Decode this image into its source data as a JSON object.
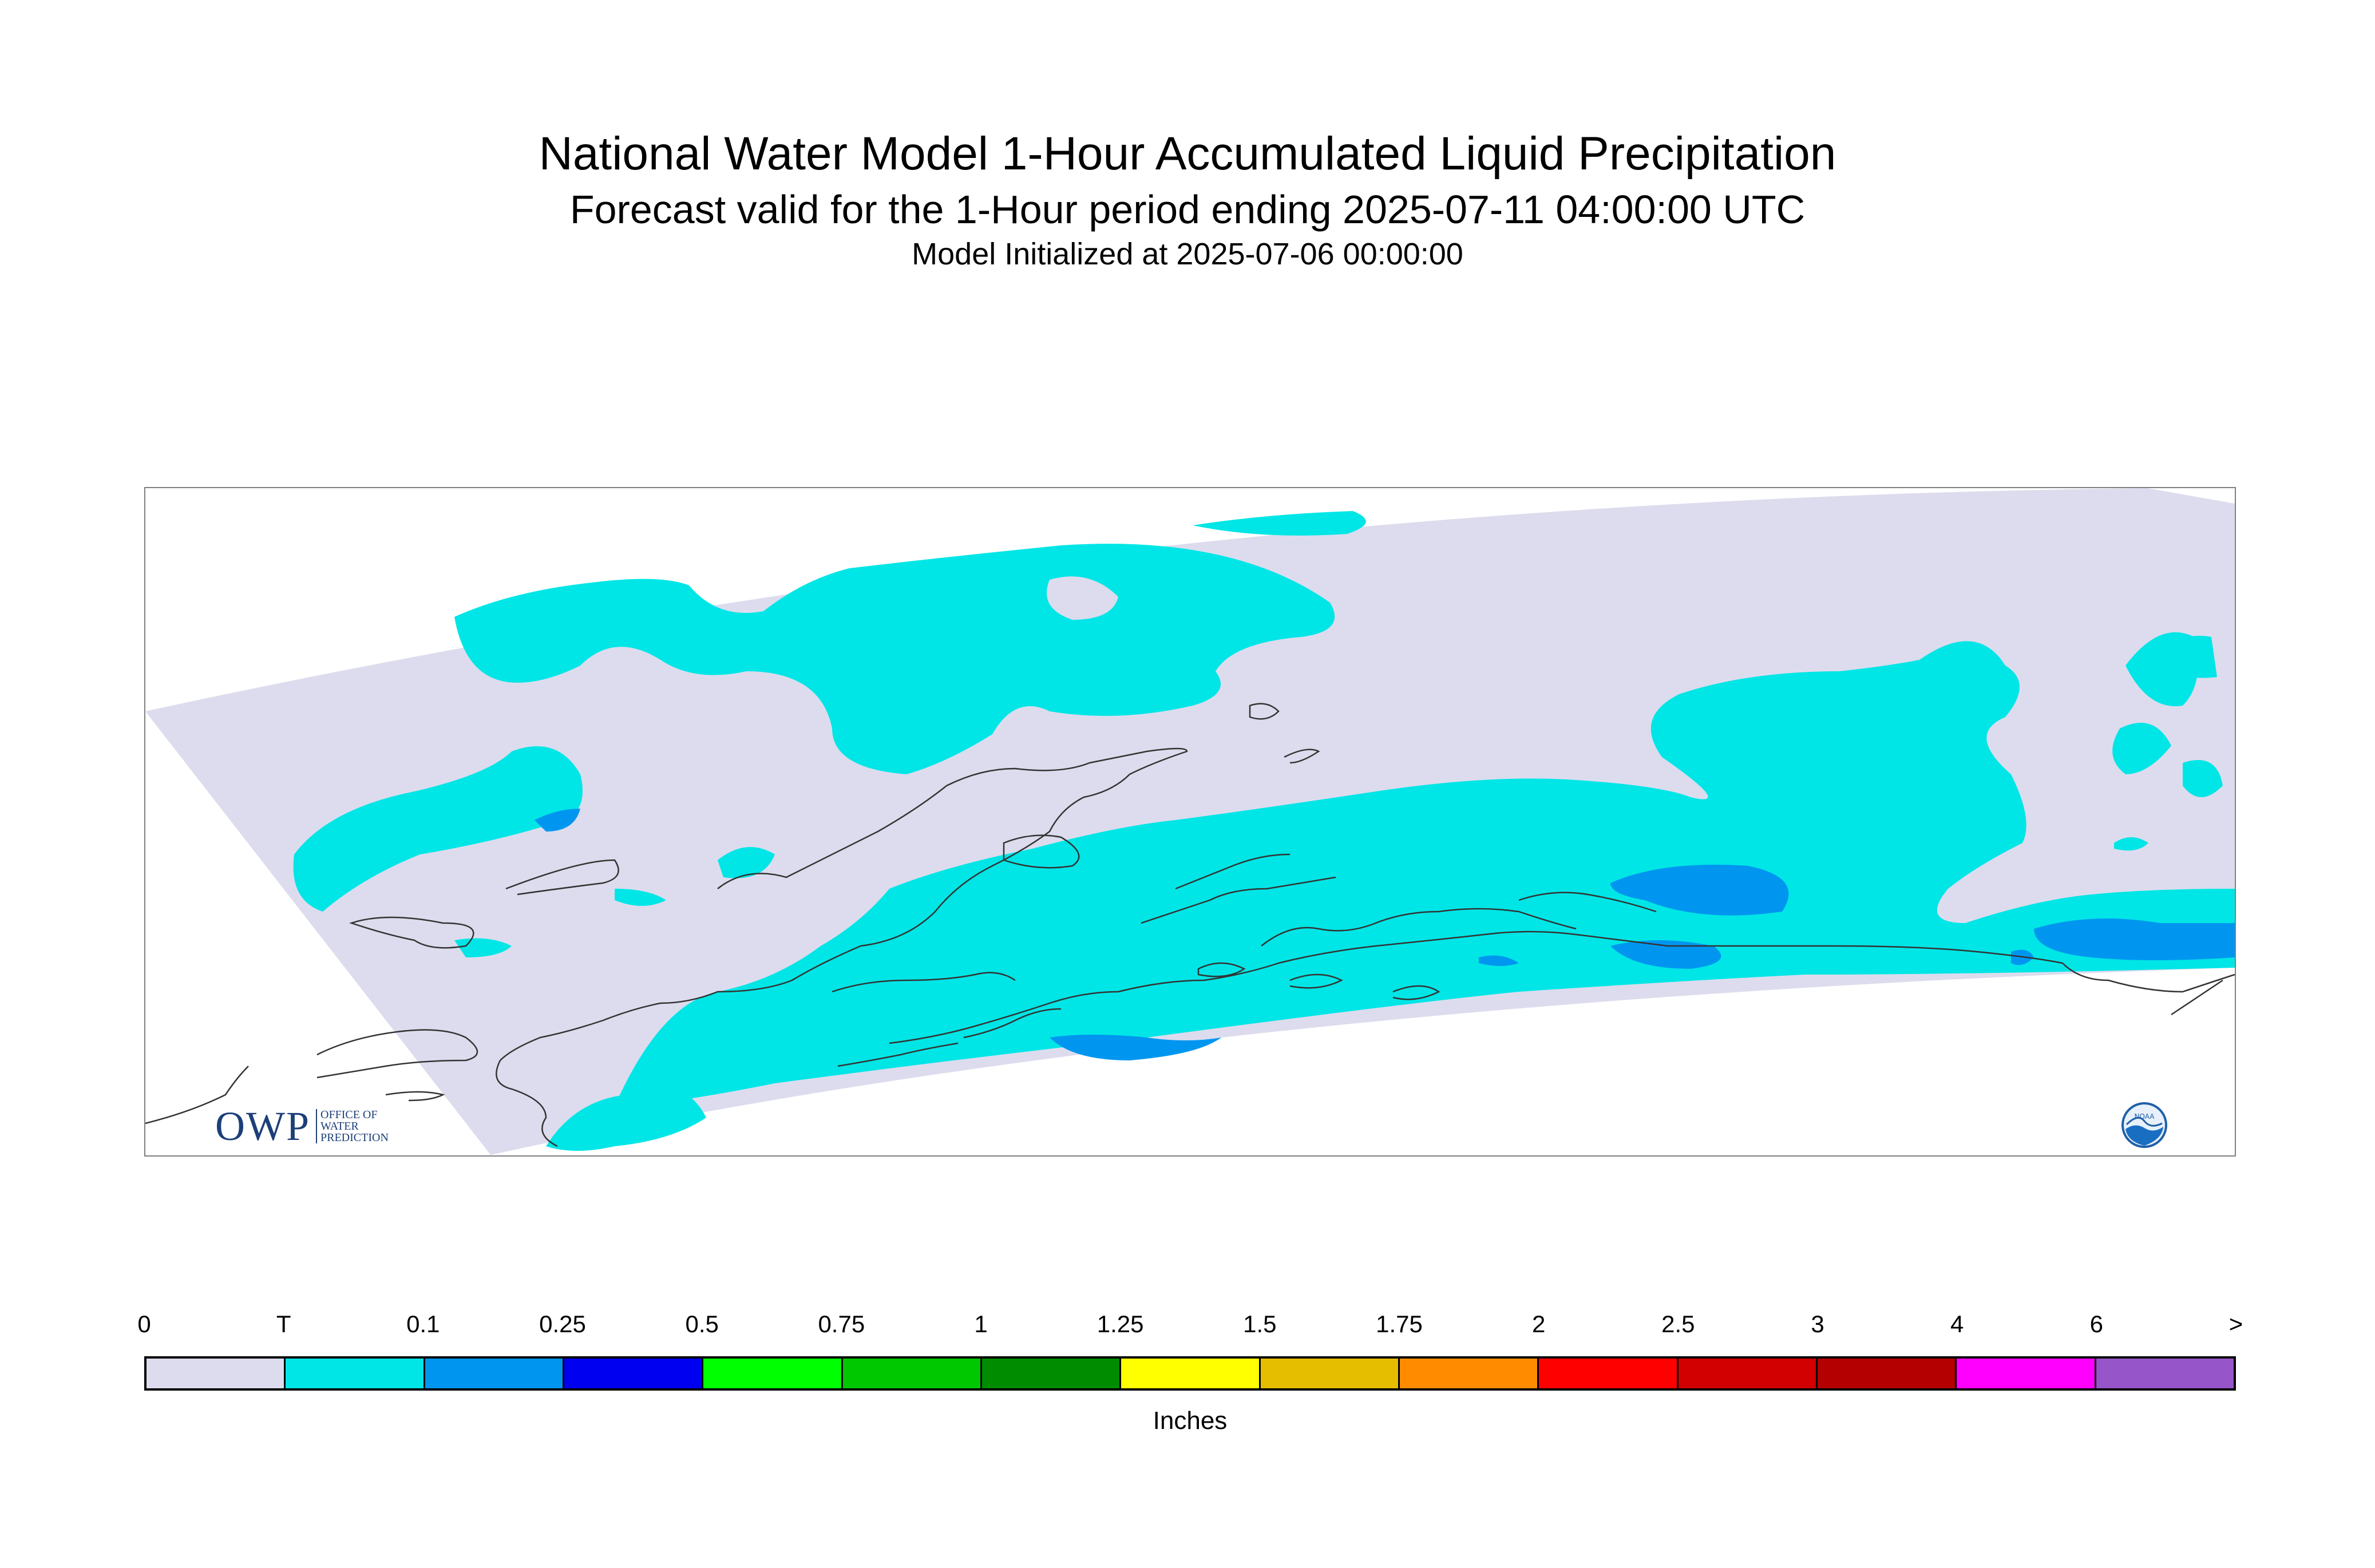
{
  "header": {
    "title": "National Water Model 1-Hour Accumulated Liquid Precipitation",
    "subtitle": "Forecast valid for the 1-Hour period ending 2025-07-11 04:00:00 UTC",
    "init_line": "Model Initialized at 2025-07-06 00:00:00"
  },
  "map": {
    "region": "Alaska",
    "colors": {
      "zero": "#dcdcee",
      "trace": "#00e6e6",
      "light": "#0096f0",
      "coastline": "#333333",
      "frame": "#7f7f7f"
    }
  },
  "logos": {
    "owp_text": "OWP",
    "owp_sub": [
      "OFFICE OF",
      "WATER",
      "PREDICTION"
    ],
    "noaa_text": "NOAA"
  },
  "legend": {
    "units": "Inches",
    "ticks": [
      "0",
      "T",
      "0.1",
      "0.25",
      "0.5",
      "0.75",
      "1",
      "1.25",
      "1.5",
      "1.75",
      "2",
      "2.5",
      "3",
      "4",
      "6",
      ">"
    ],
    "colors": [
      "#dcdcee",
      "#00e6e6",
      "#0096f0",
      "#0000f0",
      "#00ff00",
      "#00c800",
      "#008c00",
      "#ffff00",
      "#e6be00",
      "#ff8c00",
      "#ff0000",
      "#d20000",
      "#b40000",
      "#ff00ff",
      "#9655c8"
    ]
  }
}
